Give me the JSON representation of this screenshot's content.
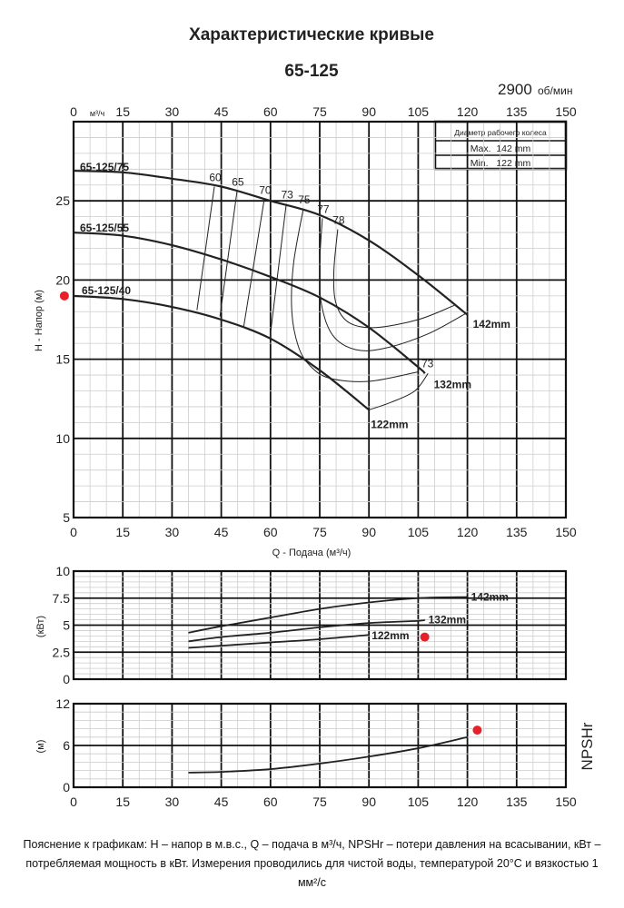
{
  "title": "Характеристические кривые",
  "model": "65-125",
  "speed": {
    "value": "2900",
    "unit": "об/мин"
  },
  "legend_box": {
    "header": "Диаметр рабочего колеса",
    "max": "Max.  142 mm",
    "min": "Min.   122 mm"
  },
  "footnote": "Пояснение к графикам: H – напор в м.в.с., Q – подача в м³/ч, NPSHr – потери давления на всасывании, кВт – потребляемая мощность в кВт. Измерения проводились для чистой воды, температурой 20°C и вязкостью 1 мм²/с",
  "colors": {
    "curve": "#222222",
    "grid_major": "#111111",
    "grid_minor": "#cccccc",
    "marker": "#e8202a"
  },
  "chart_data": [
    {
      "type": "line",
      "id": "head",
      "xlabel": "Q - Подача (м³/ч)",
      "ylabel": "H - Напор (м)",
      "top_unit": "м³/ч",
      "xlim": [
        0,
        150
      ],
      "ylim": [
        5,
        30
      ],
      "xticks": [
        0,
        15,
        30,
        45,
        60,
        75,
        90,
        105,
        120,
        135,
        150
      ],
      "yticks": [
        5,
        10,
        15,
        20,
        25
      ],
      "grid": true,
      "series": [
        {
          "name": "65-125/75",
          "end_label": "142mm",
          "points": [
            [
              0,
              26.9
            ],
            [
              15,
              26.8
            ],
            [
              30,
              26.4
            ],
            [
              45,
              25.9
            ],
            [
              60,
              25.0
            ],
            [
              75,
              24.1
            ],
            [
              90,
              22.5
            ],
            [
              105,
              20.3
            ],
            [
              120,
              17.8
            ]
          ]
        },
        {
          "name": "65-125/55",
          "end_label": "132mm",
          "points": [
            [
              0,
              23.0
            ],
            [
              15,
              22.8
            ],
            [
              30,
              22.2
            ],
            [
              45,
              21.3
            ],
            [
              60,
              20.2
            ],
            [
              75,
              18.9
            ],
            [
              90,
              17.0
            ],
            [
              105,
              14.5
            ],
            [
              107,
              14.1
            ]
          ]
        },
        {
          "name": "65-125/40",
          "end_label": "122mm",
          "points": [
            [
              0,
              19.0
            ],
            [
              15,
              18.8
            ],
            [
              30,
              18.3
            ],
            [
              45,
              17.5
            ],
            [
              60,
              16.3
            ],
            [
              75,
              14.3
            ],
            [
              90,
              11.8
            ]
          ]
        }
      ],
      "efficiency": [
        {
          "label": "60",
          "points": [
            [
              42.9,
              25.9
            ],
            [
              37.6,
              18.1
            ]
          ]
        },
        {
          "label": "65",
          "points": [
            [
              49.8,
              25.6
            ],
            [
              44.6,
              17.7
            ]
          ]
        },
        {
          "label": "70",
          "points": [
            [
              58.1,
              25.1
            ],
            [
              51.8,
              17.0
            ]
          ]
        },
        {
          "label": "73",
          "points": [
            [
              64.8,
              24.8
            ],
            [
              59.8,
              16.3
            ]
          ]
        },
        {
          "label": "75",
          "points": [
            [
              70,
              24.5
            ],
            [
              67,
              21
            ],
            [
              66.5,
              18
            ],
            [
              68.5,
              15.8
            ],
            [
              72,
              14.6
            ],
            [
              78,
              13.8
            ],
            [
              90,
              13.6
            ],
            [
              105,
              14.2
            ]
          ]
        },
        {
          "label": "77",
          "points": [
            [
              75.8,
              23.9
            ],
            [
              75,
              21
            ],
            [
              75.5,
              18.5
            ],
            [
              79,
              16.5
            ],
            [
              86,
              15.6
            ],
            [
              95,
              15.7
            ],
            [
              108,
              16.6
            ],
            [
              119.6,
              17.9
            ]
          ]
        },
        {
          "label": "78",
          "points": [
            [
              80.5,
              23.2
            ],
            [
              79.3,
              20.5
            ],
            [
              80,
              18.5
            ],
            [
              84,
              17.3
            ],
            [
              92,
              17
            ],
            [
              105,
              17.5
            ],
            [
              116,
              18.4
            ]
          ]
        }
      ],
      "efficiency_right_label": "73",
      "end_connector": [
        [
          90,
          11.8
        ],
        [
          97,
          12.3
        ],
        [
          104,
          13
        ],
        [
          108,
          14.1
        ]
      ],
      "marker": [
        -2.8,
        19.0
      ]
    },
    {
      "type": "line",
      "id": "power",
      "ylabel": "(кВт)",
      "xlim": [
        0,
        150
      ],
      "ylim": [
        0,
        10
      ],
      "yticks": [
        0,
        2.5,
        5,
        7.5,
        10
      ],
      "yticklabels": [
        "0",
        "2.5",
        "5",
        "7.5",
        "10"
      ],
      "grid": true,
      "series": [
        {
          "name": "142mm",
          "points": [
            [
              35,
              4.3
            ],
            [
              45,
              4.9
            ],
            [
              60,
              5.7
            ],
            [
              75,
              6.5
            ],
            [
              90,
              7.1
            ],
            [
              105,
              7.5
            ],
            [
              120,
              7.6
            ]
          ]
        },
        {
          "name": "132mm",
          "points": [
            [
              35,
              3.5
            ],
            [
              45,
              3.9
            ],
            [
              60,
              4.3
            ],
            [
              75,
              4.8
            ],
            [
              90,
              5.2
            ],
            [
              105,
              5.4
            ],
            [
              107,
              5.5
            ]
          ]
        },
        {
          "name": "122mm",
          "points": [
            [
              35,
              2.9
            ],
            [
              45,
              3.1
            ],
            [
              60,
              3.4
            ],
            [
              75,
              3.7
            ],
            [
              90,
              4.1
            ]
          ]
        }
      ],
      "marker": [
        107,
        3.9
      ]
    },
    {
      "type": "line",
      "id": "npsh",
      "ylabel": "(м)",
      "side_label": "NPSHr",
      "xlim": [
        0,
        150
      ],
      "ylim": [
        0,
        12
      ],
      "xticks": [
        0,
        15,
        30,
        45,
        60,
        75,
        90,
        105,
        120,
        135,
        150
      ],
      "yticks": [
        0,
        6,
        12
      ],
      "grid": true,
      "series": [
        {
          "points": [
            [
              35,
              2.1
            ],
            [
              45,
              2.2
            ],
            [
              60,
              2.6
            ],
            [
              75,
              3.4
            ],
            [
              90,
              4.4
            ],
            [
              105,
              5.6
            ],
            [
              120,
              7.2
            ]
          ]
        }
      ],
      "marker": [
        123,
        8.2
      ]
    }
  ]
}
